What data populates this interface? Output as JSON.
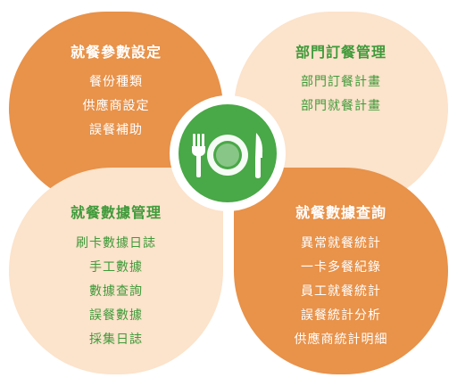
{
  "petals": {
    "top_left": {
      "title": "就餐參數設定",
      "items": [
        "餐份種類",
        "供應商設定",
        "誤餐補助"
      ]
    },
    "top_right": {
      "title": "部門訂餐管理",
      "items": [
        "部門訂餐計畫",
        "部門就餐計畫"
      ]
    },
    "bottom_left": {
      "title": "就餐數據管理",
      "items": [
        "刷卡數據日誌",
        "手工數據",
        "數據查詢",
        "誤餐數據",
        "採集日誌"
      ]
    },
    "bottom_right": {
      "title": "就餐數據查詢",
      "items": [
        "異常就餐統計",
        "一卡多餐紀錄",
        "員工就餐統計",
        "誤餐統計分析",
        "供應商統計明細"
      ]
    }
  },
  "colors": {
    "orange": "#E8924A",
    "cream": "#FCE3CB",
    "green": "#49A847",
    "text_green": "#3F9A3A"
  },
  "center_icon": "fork-plate-knife-icon"
}
